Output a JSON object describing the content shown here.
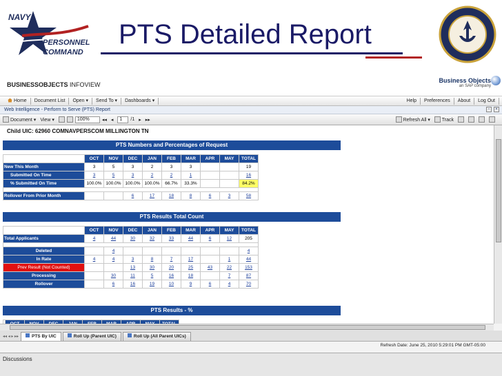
{
  "slide": {
    "title": "PTS Detailed Report",
    "logo_words": [
      "NAVY",
      "PERSONNEL",
      "COMMAND"
    ],
    "seal_text": "UNITED STATES NAVY · NAVY PERSONNEL COMMAND"
  },
  "banner": {
    "brand_bold": "BUSINESSOBJECTS",
    "brand_rest": " INFOVIEW",
    "bo_name": "Business Objects",
    "bo_sub": "an SAP company"
  },
  "menubar": {
    "left": [
      "Home",
      "Document List",
      "Open ▾",
      "Send To ▾",
      "Dashboards ▾"
    ],
    "right": [
      "Help",
      "Preferences",
      "About",
      "Log Out"
    ]
  },
  "wi_title": "Web Intelligence - Perform to Serve (PTS) Report",
  "toolbar": {
    "document": "Document ▾",
    "view": "View ▾",
    "zoom": "100%",
    "page": "1",
    "page_of": "/1",
    "refresh_all": "Refresh All ▾",
    "track": "Track"
  },
  "report": {
    "child_uic": "Child UIC:  62960 COMNAVPERSCOM MILLINGTON TN",
    "section1_title": "PTS Numbers and Percentages of Request",
    "section2_title": "PTS Results Total Count",
    "section3_title": "PTS Results - %",
    "months": [
      "OCT",
      "NOV",
      "DEC",
      "JAN",
      "FEB",
      "MAR",
      "APR",
      "MAY",
      "TOTAL"
    ],
    "table1": [
      {
        "label": "New This Month",
        "style": "lab",
        "values": [
          "3",
          "5",
          "3",
          "2",
          "3",
          "3",
          "",
          "",
          "19"
        ],
        "links": []
      },
      {
        "label": "Submitted On Time",
        "style": "lab indent",
        "values": [
          "3",
          "5",
          "3",
          "2",
          "2",
          "1",
          "",
          "",
          "16"
        ],
        "links": [
          0,
          1,
          2,
          3,
          4,
          5,
          8
        ]
      },
      {
        "label": "% Submitted On Time",
        "style": "lab indent",
        "values": [
          "100.0%",
          "100.0%",
          "100.0%",
          "100.0%",
          "66.7%",
          "33.3%",
          "",
          "",
          "84.2%"
        ],
        "links": [],
        "highlight": 8
      },
      {
        "label": "",
        "spacer": true
      },
      {
        "label": "Rollover From Prior Month",
        "style": "lab",
        "values": [
          "",
          "",
          "6",
          "17",
          "18",
          "8",
          "6",
          "3",
          "58"
        ],
        "links": [
          2,
          3,
          4,
          5,
          6,
          7,
          8
        ]
      }
    ],
    "table2": [
      {
        "label": "Total Applicants",
        "style": "lab",
        "values": [
          "4",
          "44",
          "30",
          "32",
          "33",
          "44",
          "6",
          "12",
          "205"
        ],
        "links": [
          0,
          1,
          2,
          3,
          4,
          5,
          6,
          7
        ]
      },
      {
        "label": "",
        "spacer": true
      },
      {
        "label": "Deleted",
        "style": "labc",
        "values": [
          "",
          "4",
          "",
          "",
          "",
          "",
          "",
          "",
          "4"
        ],
        "links": [
          1,
          8
        ]
      },
      {
        "label": "In Rate",
        "style": "labc",
        "values": [
          "4",
          "4",
          "3",
          "8",
          "7",
          "17",
          "",
          "1",
          "44"
        ],
        "links": [
          0,
          1,
          2,
          3,
          4,
          5,
          7,
          8
        ]
      },
      {
        "label": "Prev Result (Not Counted)",
        "style": "labred",
        "values": [
          "",
          "",
          "13",
          "30",
          "20",
          "25",
          "43",
          "22",
          "153"
        ],
        "links": [
          2,
          3,
          4,
          5,
          6,
          7,
          8
        ]
      },
      {
        "label": "Processing",
        "style": "labc",
        "values": [
          "",
          "30",
          "11",
          "5",
          "16",
          "18",
          "",
          "7",
          "87"
        ],
        "links": [
          1,
          2,
          3,
          4,
          5,
          7,
          8
        ]
      },
      {
        "label": "Rollover",
        "style": "labc",
        "values": [
          "",
          "6",
          "16",
          "19",
          "10",
          "9",
          "6",
          "4",
          "70"
        ],
        "links": [
          1,
          2,
          3,
          4,
          5,
          6,
          7,
          8
        ]
      }
    ]
  },
  "tabs": [
    "PTS By UIC",
    "Roll Up (Parent UIC)",
    "Roll Up (All Parent UICs)"
  ],
  "status": {
    "refresh_date": "Refresh Date: June 25, 2010 5:29:01 PM GMT-05:00"
  },
  "discussions": "Discussions"
}
